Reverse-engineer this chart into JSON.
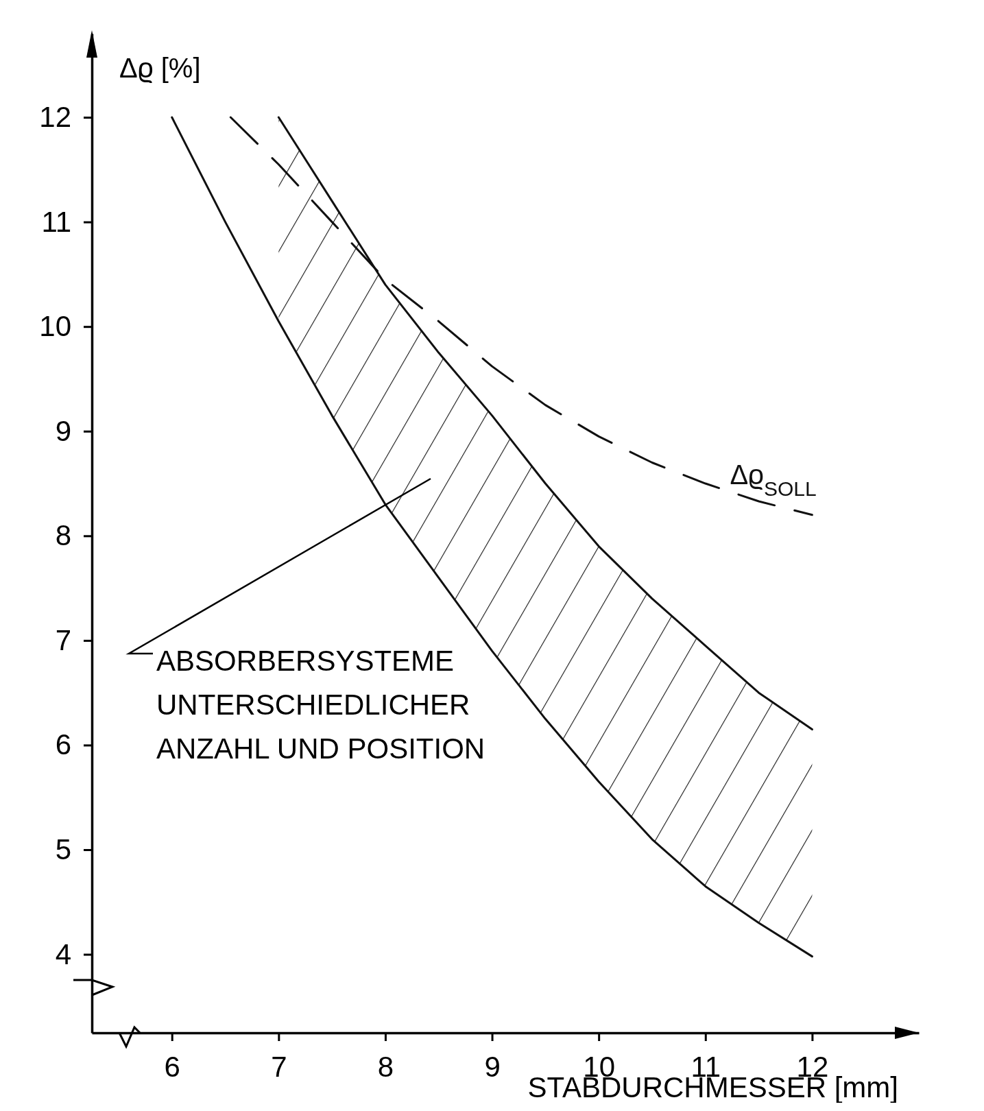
{
  "chart_data": {
    "type": "line",
    "xlabel": "STABDURCHMESSER [mm]",
    "ylabel": "Δϱ [%]",
    "xlim": [
      5.25,
      13
    ],
    "ylim": [
      3.25,
      12.8
    ],
    "xticks": [
      6,
      7,
      8,
      9,
      10,
      11,
      12
    ],
    "yticks": [
      4,
      5,
      6,
      7,
      8,
      9,
      10,
      11,
      12
    ],
    "grid": false,
    "legend": false,
    "series": [
      {
        "type": "line",
        "color": "#111111",
        "x": [
          6,
          6.5,
          7,
          7.5,
          8,
          8.5,
          9,
          9.5,
          10,
          10.5,
          11,
          11.5,
          12
        ],
        "values": [
          12.0,
          11.0,
          10.05,
          9.15,
          8.3,
          7.6,
          6.9,
          6.25,
          5.65,
          5.1,
          4.65,
          4.3,
          3.98
        ]
      },
      {
        "color": "#111111",
        "x": [
          7,
          7.5,
          8,
          8.5,
          9,
          9.5,
          10,
          10.5,
          11,
          11.5,
          12
        ],
        "values": [
          12.0,
          11.2,
          10.4,
          9.75,
          9.15,
          8.5,
          7.9,
          7.4,
          6.95,
          6.5,
          6.15
        ]
      },
      {
        "type": "line",
        "name": "Δϱ$_{SOLL}$",
        "color": "#111111",
        "line_style": "dashed",
        "x": [
          6.55,
          7,
          7.5,
          8,
          8.5,
          9,
          9.5,
          10,
          10.5,
          11,
          11.5,
          12
        ],
        "values": [
          12.0,
          11.55,
          11.0,
          10.45,
          10.05,
          9.62,
          9.25,
          8.95,
          8.7,
          8.5,
          8.33,
          8.2
        ]
      }
    ],
    "annotations": [
      "ABSORBERSYSTEME\nUNTERSCHIEDLICHER\nANZAHL UND POSITION"
    ]
  }
}
